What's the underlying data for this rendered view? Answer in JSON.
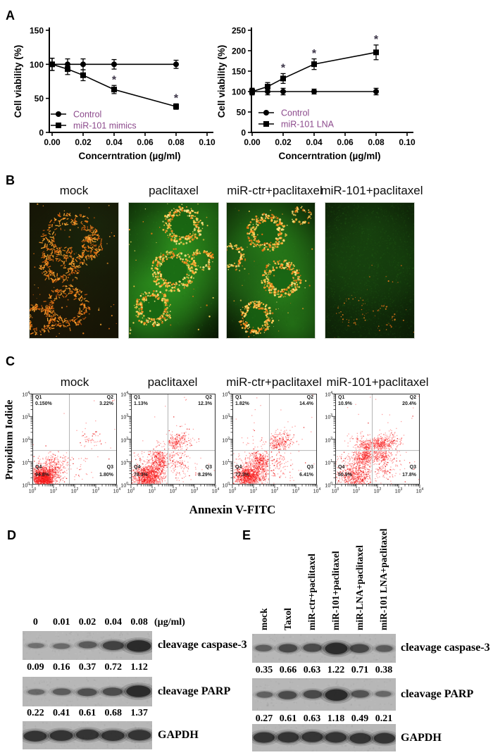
{
  "panels": {
    "A": {
      "label": "A"
    },
    "B": {
      "label": "B",
      "images": [
        {
          "label": "mock"
        },
        {
          "label": "paclitaxel"
        },
        {
          "label": "miR-ctr+paclitaxel"
        },
        {
          "label": "miR-101+paclitaxel"
        }
      ]
    },
    "C": {
      "label": "C"
    },
    "D": {
      "label": "D"
    },
    "E": {
      "label": "E"
    }
  },
  "colors": {
    "legend_text": "#8c4a8c",
    "significance": "#3c3548",
    "flow_points": "#ff2b2b",
    "axis": "#000000"
  },
  "chart_data": [
    {
      "type": "line",
      "panel": "A-left",
      "xlabel": "Concerntration (µg/ml)",
      "ylabel": "Cell viability (%)",
      "x": [
        0,
        0.01,
        0.02,
        0.04,
        0.08
      ],
      "xlim": [
        0,
        0.1
      ],
      "xticks": [
        "0.00",
        "0.02",
        "0.04",
        "0.06",
        "0.08",
        "0.10"
      ],
      "ylim": [
        0,
        150
      ],
      "yticks": [
        0,
        50,
        100,
        150
      ],
      "series": [
        {
          "name": "Control",
          "marker": "circle",
          "values": [
            100,
            100,
            100,
            100,
            100
          ],
          "errors": [
            9,
            8,
            8,
            7,
            6
          ]
        },
        {
          "name": "miR-101 mimics",
          "marker": "square",
          "values": [
            100,
            93,
            84,
            63,
            38
          ],
          "errors": [
            9,
            8,
            8,
            6,
            4
          ]
        }
      ],
      "significance": [
        {
          "x": 0.04,
          "y": 82.5,
          "symbol": "*"
        },
        {
          "x": 0.08,
          "y": 55.5,
          "symbol": "*"
        }
      ]
    },
    {
      "type": "line",
      "panel": "A-right",
      "xlabel": "Concerntration (µg/ml)",
      "ylabel": "Cell viability (%)",
      "x": [
        0,
        0.01,
        0.02,
        0.04,
        0.08
      ],
      "xlim": [
        0,
        0.1
      ],
      "xticks": [
        "0.00",
        "0.02",
        "0.04",
        "0.06",
        "0.08",
        "0.10"
      ],
      "ylim": [
        0,
        250
      ],
      "yticks": [
        0,
        50,
        100,
        150,
        200,
        250
      ],
      "series": [
        {
          "name": "Control",
          "marker": "circle",
          "values": [
            100,
            100,
            100,
            100,
            100
          ],
          "errors": [
            8,
            8,
            8,
            6,
            8
          ]
        },
        {
          "name": "miR-101 LNA",
          "marker": "square",
          "values": [
            100,
            112,
            132,
            167,
            196
          ],
          "errors": [
            8,
            10,
            12,
            13,
            18
          ]
        }
      ],
      "significance": [
        {
          "x": 0.02,
          "y": 166,
          "symbol": "*"
        },
        {
          "x": 0.04,
          "y": 202,
          "symbol": "*"
        },
        {
          "x": 0.08,
          "y": 236,
          "symbol": "*"
        }
      ]
    },
    {
      "type": "scatter",
      "panel": "C",
      "xlabel": "Annexin V-FITC",
      "ylabel": "Propidium Iodide",
      "log_decades": [
        0,
        1,
        2,
        3,
        4
      ],
      "plots": [
        {
          "label": "mock",
          "quadrants": {
            "Q1": "0.150%",
            "Q2": "3.22%",
            "Q3": "1.80%",
            "Q4": "94.8%"
          }
        },
        {
          "label": "paclitaxel",
          "quadrants": {
            "Q1": "1.13%",
            "Q2": "12.3%",
            "Q3": "8.29%",
            "Q4": "78.3%"
          }
        },
        {
          "label": "miR-ctr+paclitaxel",
          "quadrants": {
            "Q1": "1.82%",
            "Q2": "14.4%",
            "Q3": "6.41%",
            "Q4": "77.3%"
          }
        },
        {
          "label": "miR-101+paclitaxel",
          "quadrants": {
            "Q1": "10.9%",
            "Q2": "20.4%",
            "Q3": "17.8%",
            "Q4": "50.9%"
          }
        }
      ]
    },
    {
      "type": "western-blot",
      "panel": "D",
      "lane_labels": [
        "0",
        "0.01",
        "0.02",
        "0.04",
        "0.08"
      ],
      "unit": "(µg/ml)",
      "rows": [
        {
          "protein": "cleavage caspase-3",
          "values": [
            0.09,
            0.16,
            0.37,
            0.72,
            1.12
          ]
        },
        {
          "protein": "cleavage PARP",
          "values": [
            0.22,
            0.41,
            0.61,
            0.68,
            1.37
          ]
        },
        {
          "protein": "GAPDH",
          "values": null
        }
      ]
    },
    {
      "type": "western-blot",
      "panel": "E",
      "lane_labels": [
        "mock",
        "Taxol",
        "miR-ctr+paclitaxel",
        "miR-101+paclitaxel",
        "miR-LNA+paclitaxel",
        "miR-101 LNA+paclitaxel"
      ],
      "rows": [
        {
          "protein": "cleavage caspase-3",
          "values": [
            0.35,
            0.66,
            0.63,
            1.22,
            0.71,
            0.38
          ]
        },
        {
          "protein": "cleavage PARP",
          "values": [
            0.27,
            0.61,
            0.63,
            1.18,
            0.49,
            0.21
          ]
        },
        {
          "protein": "GAPDH",
          "values": null
        }
      ]
    }
  ]
}
